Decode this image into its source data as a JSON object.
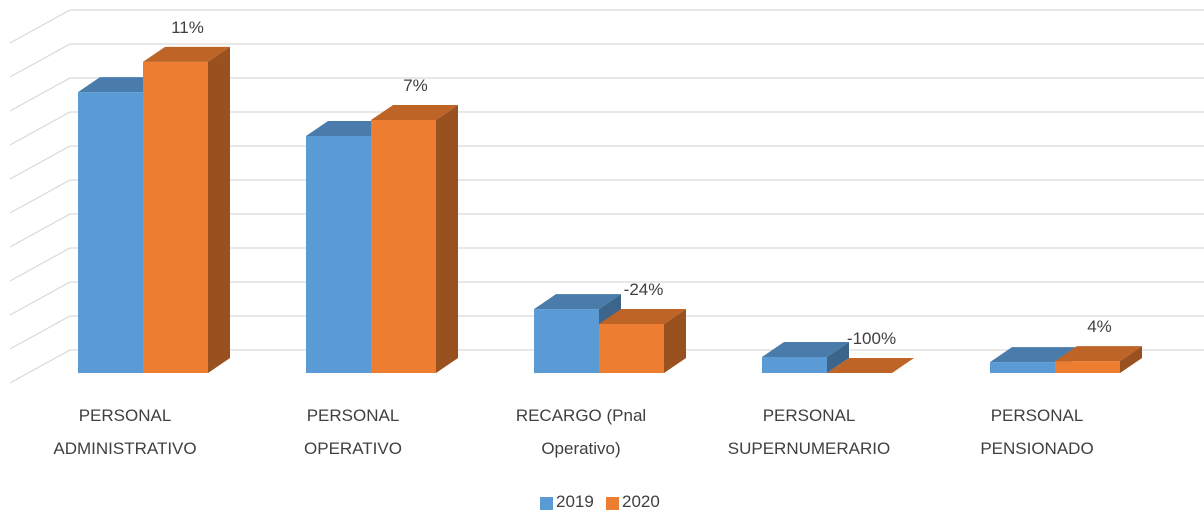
{
  "chart_data": {
    "type": "bar3d",
    "categories": [
      "PERSONAL ADMINISTRATIVO",
      "PERSONAL OPERATIVO",
      "RECARGO (Pnal Operativo)",
      "PERSONAL SUPERNUMERARIO",
      "PERSONAL PENSIONADO"
    ],
    "series": [
      {
        "name": "2019",
        "color": "#5b9bd5",
        "values": [
          8.26,
          6.97,
          1.88,
          0.47,
          0.32
        ]
      },
      {
        "name": "2020",
        "color": "#ed7d31",
        "values": [
          9.15,
          7.44,
          1.44,
          0.0,
          0.35
        ]
      }
    ],
    "change": {
      "values": [
        11,
        7,
        -24,
        -100,
        4
      ],
      "value_labels": [
        "11%",
        "7%",
        "-24%",
        "-100%",
        "4%"
      ]
    },
    "ylim": [
      0,
      10
    ],
    "yticks": [
      0,
      1,
      2,
      3,
      4,
      5,
      6,
      7,
      8,
      9,
      10
    ],
    "grid": true,
    "legend": "bottom"
  }
}
